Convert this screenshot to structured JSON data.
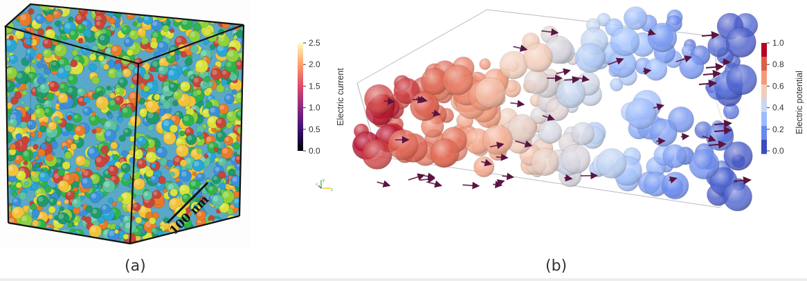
{
  "panel_a": {
    "caption": "(a)",
    "scale_bar_label": "100 nm"
  },
  "panel_b": {
    "caption": "(b)",
    "colorbar_current": {
      "label": "Electric current",
      "ticks": [
        "2.5",
        "2.0",
        "1.5",
        "1.0",
        "0.5",
        "0.0"
      ]
    },
    "colorbar_potential": {
      "label": "Electric potential",
      "ticks": [
        "1.0",
        "0.8",
        "0.6",
        "0.4",
        "0.2",
        "0.0"
      ]
    },
    "orientation_axes": [
      "x",
      "y",
      "z"
    ]
  },
  "colors": {
    "current_scale": [
      "#f7f59a",
      "#f2a93a",
      "#d8503a",
      "#a1216a",
      "#5a0b7c",
      "#000004"
    ],
    "potential_scale": [
      "#b40426",
      "#dc5d4a",
      "#f49a7b",
      "#f1cdb9",
      "#c9d8ef",
      "#9abbff",
      "#6788ee",
      "#3b4cc0"
    ]
  }
}
